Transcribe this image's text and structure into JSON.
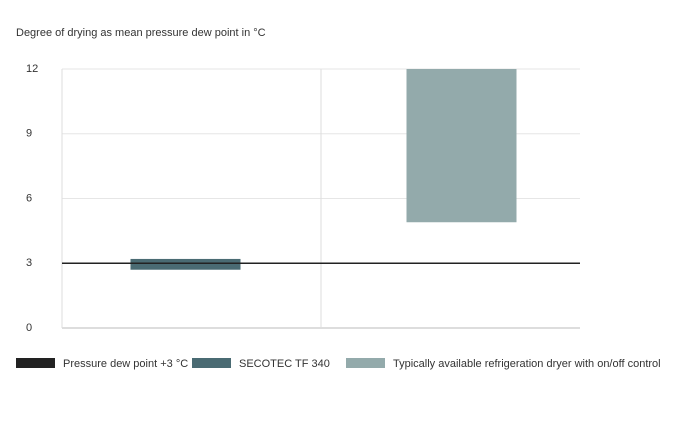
{
  "chart_data": {
    "type": "range_bar",
    "ylabel": "Degree of drying as mean pressure dew point in °C",
    "categories": [
      null,
      null
    ],
    "series": [
      {
        "name": "SECOTEC TF 340",
        "color": "#4a6b73",
        "low": [
          2.7,
          null
        ],
        "high": [
          3.2,
          null
        ]
      },
      {
        "name": "Typically available refrigeration dryer with on/off control",
        "color": "#93aaab",
        "low": [
          null,
          4.9
        ],
        "high": [
          null,
          12
        ]
      }
    ],
    "reference_lines": [
      {
        "name": "Pressure dew point +3 °C",
        "value": 3,
        "color": "#222222"
      }
    ],
    "ylim": [
      0,
      12
    ],
    "yticks": [
      0,
      3,
      6,
      9,
      12
    ],
    "grid": true
  }
}
